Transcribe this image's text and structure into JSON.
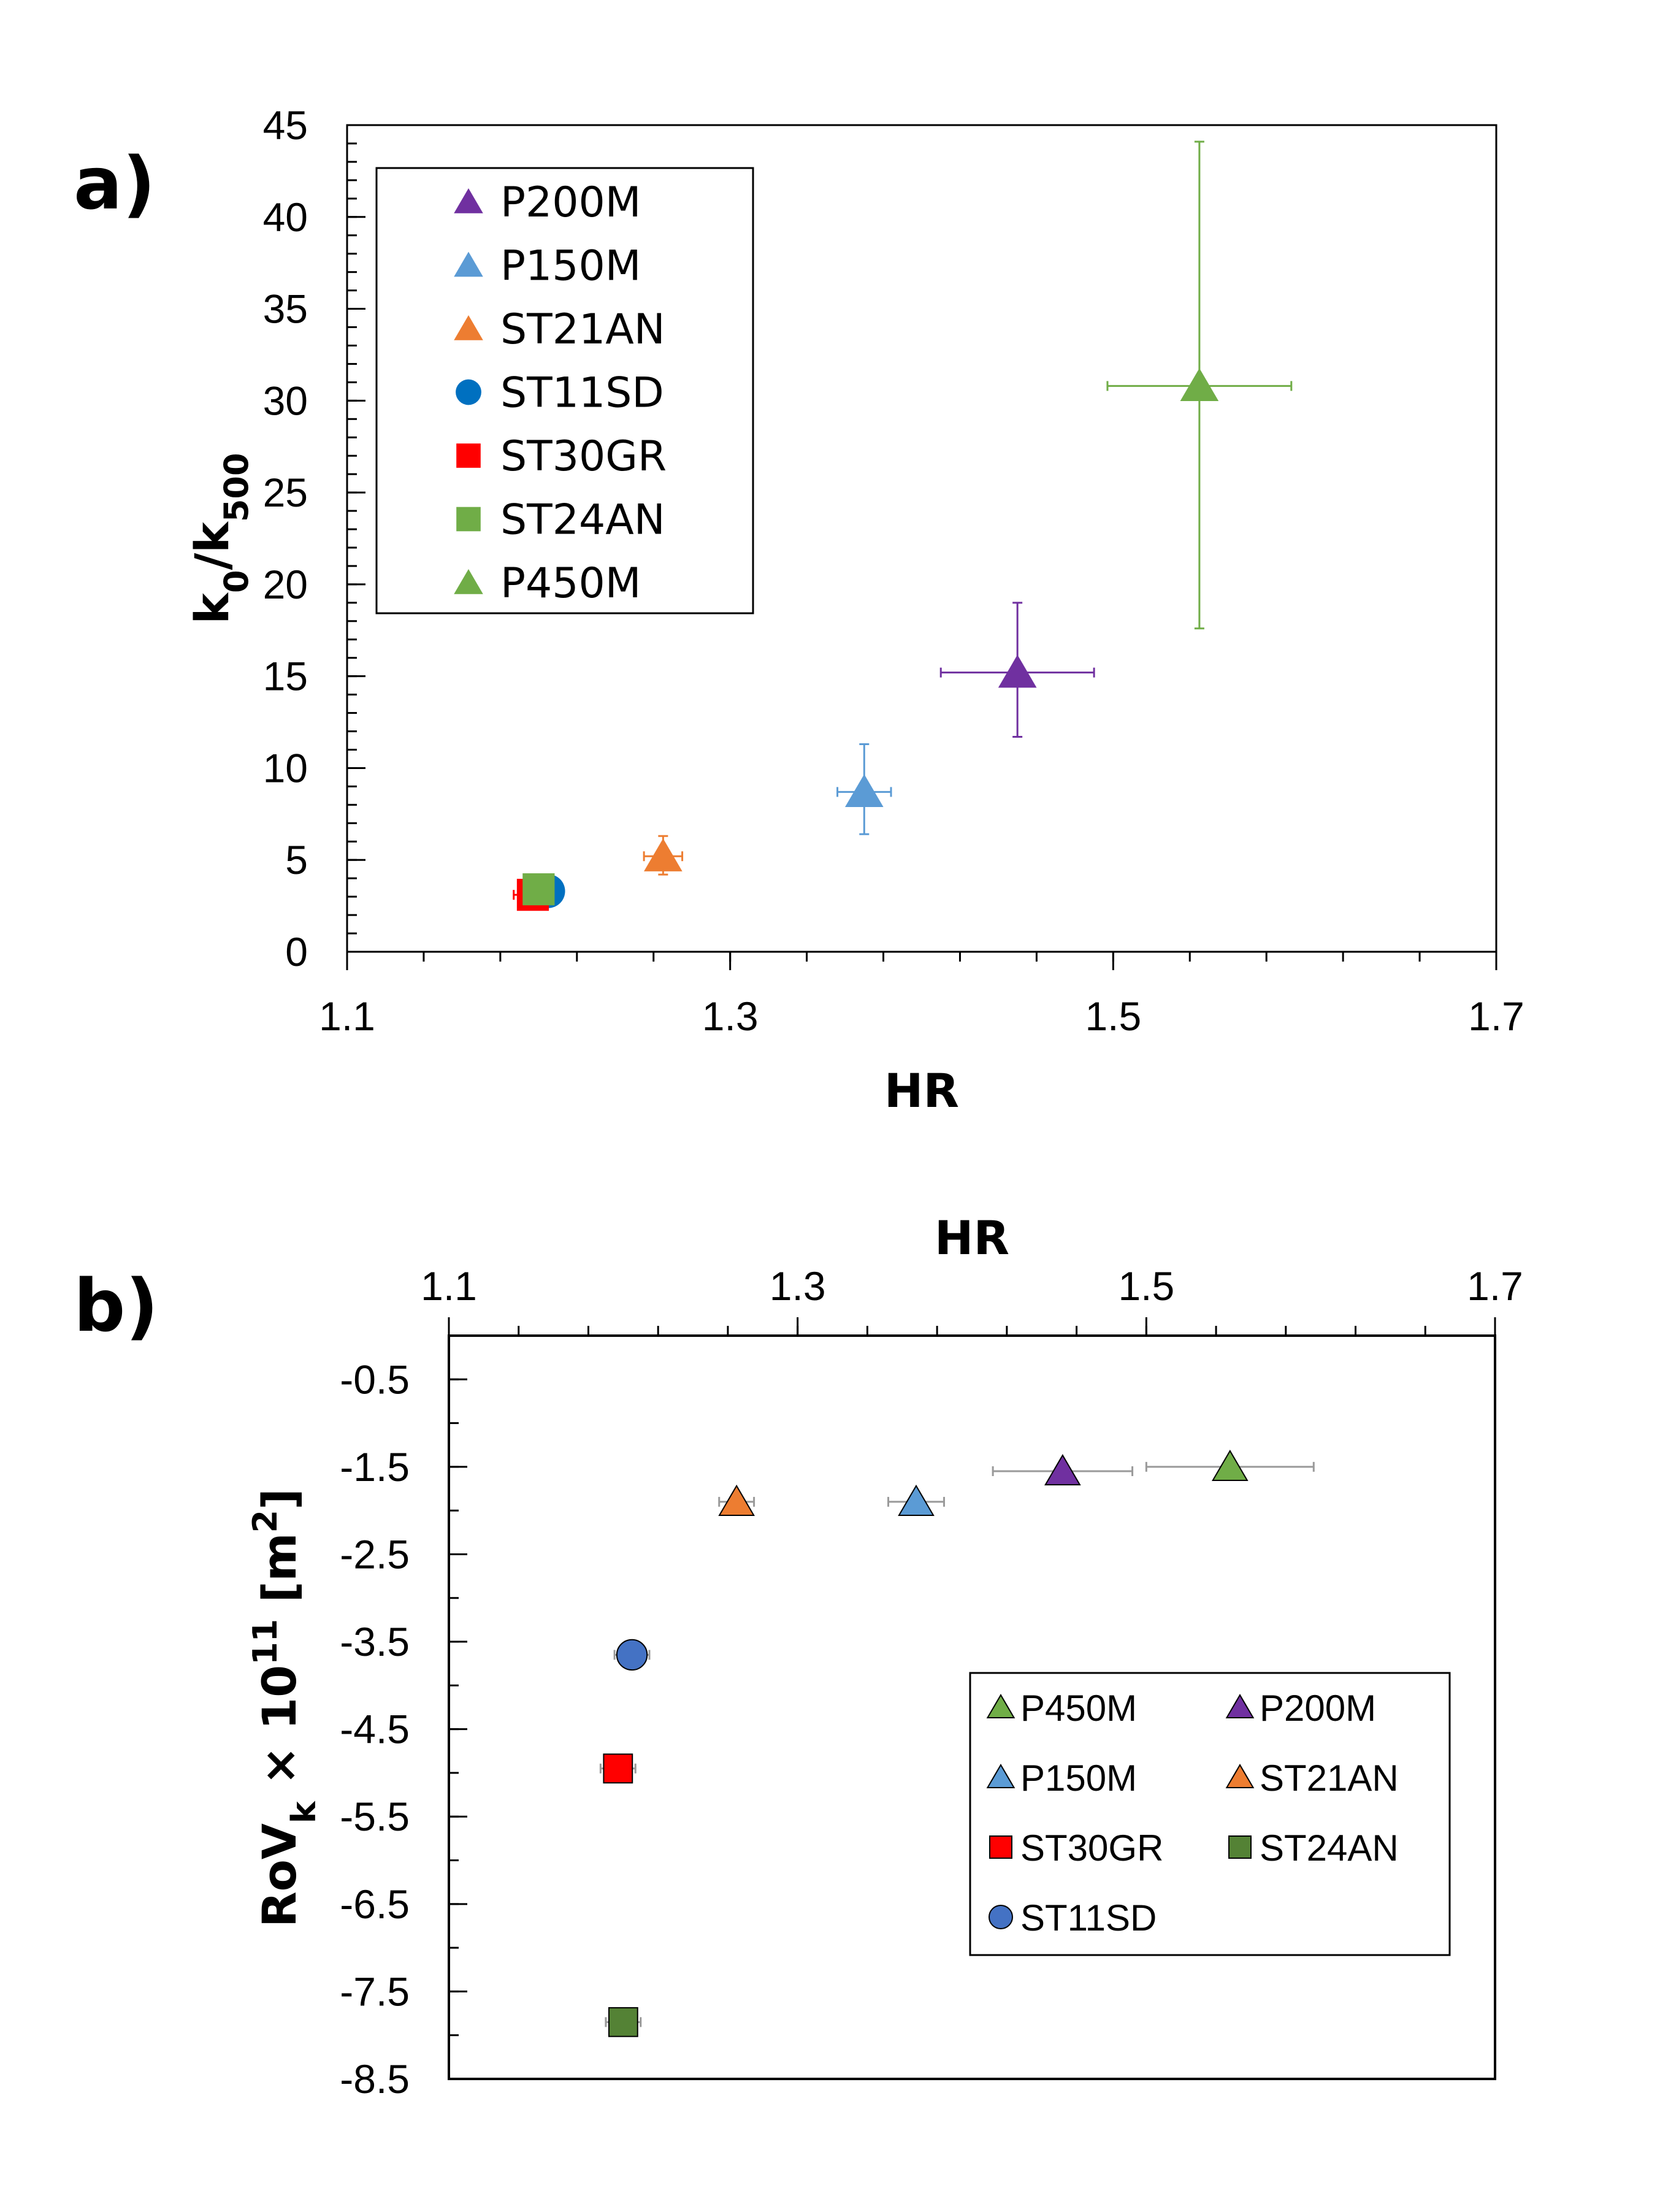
{
  "panels": {
    "a": {
      "label": "a)"
    },
    "b": {
      "label": "b)"
    }
  },
  "chart_data": [
    {
      "type": "scatter",
      "panel": "a)",
      "xlabel": "HR",
      "ylabel_parts": {
        "base": "k",
        "sub1": "0",
        "slash": "/k",
        "sub2": "500"
      },
      "xlim": [
        1.1,
        1.7
      ],
      "ylim": [
        0,
        45
      ],
      "x_ticks": [
        "1.1",
        "1.3",
        "1.5",
        "1.7"
      ],
      "y_ticks": [
        "0",
        "5",
        "10",
        "15",
        "20",
        "25",
        "30",
        "35",
        "40",
        "45"
      ],
      "x_tick_values": [
        1.1,
        1.3,
        1.5,
        1.7
      ],
      "y_tick_values": [
        0,
        5,
        10,
        15,
        20,
        25,
        30,
        35,
        40,
        45
      ],
      "x_minor_step": 0.04,
      "y_minor_step": 1,
      "grid": false,
      "legend_position": "top-left",
      "legend_order": [
        "P200M",
        "P150M",
        "ST21AN",
        "ST11SD",
        "ST30GR",
        "ST24AN",
        "P450M"
      ],
      "series": [
        {
          "name": "P200M",
          "marker": "triangle",
          "color": "#7030A0",
          "x": 1.45,
          "y": 15.2,
          "x_err": 0.04,
          "y_err_plus": 3.8,
          "y_err_minus": 3.5
        },
        {
          "name": "P150M",
          "marker": "triangle",
          "color": "#5B9BD5",
          "x": 1.37,
          "y": 8.7,
          "x_err": 0.014,
          "y_err_plus": 2.6,
          "y_err_minus": 2.3
        },
        {
          "name": "ST21AN",
          "marker": "triangle",
          "color": "#ED7D31",
          "x": 1.265,
          "y": 5.2,
          "x_err": 0.01,
          "y_err_plus": 1.1,
          "y_err_minus": 1.0
        },
        {
          "name": "ST11SD",
          "marker": "circle",
          "color": "#0070C0",
          "x": 1.205,
          "y": 3.3,
          "x_err": 0.008,
          "y_err_plus": 0.3,
          "y_err_minus": 0.3
        },
        {
          "name": "ST30GR",
          "marker": "square",
          "color": "#FF0000",
          "x": 1.197,
          "y": 3.1,
          "x_err": 0.01,
          "y_err_plus": 0.3,
          "y_err_minus": 0.3
        },
        {
          "name": "ST24AN",
          "marker": "square",
          "color": "#70AD47",
          "x": 1.2,
          "y": 3.4,
          "x_err": 0.006,
          "y_err_plus": 0.3,
          "y_err_minus": 0.3
        },
        {
          "name": "P450M",
          "marker": "triangle",
          "color": "#70AD47",
          "x": 1.545,
          "y": 30.8,
          "x_err": 0.048,
          "y_err_plus": 13.3,
          "y_err_minus": 13.2
        }
      ]
    },
    {
      "type": "scatter",
      "panel": "b)",
      "xlabel": "HR",
      "x_axis_position": "top",
      "ylabel_parts": {
        "base": "RoV",
        "sub": "k",
        "mid": " × 10",
        "sup": "11",
        "unit": " [m",
        "unit_sup": "2",
        "close": "]"
      },
      "xlim": [
        1.1,
        1.7
      ],
      "ylim": [
        -8.5,
        0
      ],
      "x_ticks": [
        "1.1",
        "1.3",
        "1.5",
        "1.7"
      ],
      "y_ticks": [
        "-0.5",
        "-1.5",
        "-2.5",
        "-3.5",
        "-4.5",
        "-5.5",
        "-6.5",
        "-7.5",
        "-8.5"
      ],
      "x_tick_values": [
        1.1,
        1.3,
        1.5,
        1.7
      ],
      "y_tick_values": [
        -0.5,
        -1.5,
        -2.5,
        -3.5,
        -4.5,
        -5.5,
        -6.5,
        -7.5,
        -8.5
      ],
      "x_minor_step": 0.04,
      "y_minor_step": 0.5,
      "grid": false,
      "legend_position": "bottom-right",
      "legend_order": [
        "P450M",
        "P200M",
        "P150M",
        "ST21AN",
        "ST30GR",
        "ST24AN",
        "ST11SD"
      ],
      "series": [
        {
          "name": "P450M",
          "marker": "triangle",
          "color": "#70AD47",
          "x": 1.548,
          "y": -1.5,
          "x_err": 0.048,
          "y_err": 0
        },
        {
          "name": "P200M",
          "marker": "triangle",
          "color": "#7030A0",
          "x": 1.452,
          "y": -1.55,
          "x_err": 0.04,
          "y_err": 0
        },
        {
          "name": "P150M",
          "marker": "triangle",
          "color": "#5B9BD5",
          "x": 1.368,
          "y": -1.9,
          "x_err": 0.016,
          "y_err": 0
        },
        {
          "name": "ST21AN",
          "marker": "triangle",
          "color": "#ED7D31",
          "x": 1.265,
          "y": -1.9,
          "x_err": 0.01,
          "y_err": 0
        },
        {
          "name": "ST30GR",
          "marker": "square",
          "color": "#FF0000",
          "x": 1.197,
          "y": -4.95,
          "x_err": 0.01,
          "y_err": 0
        },
        {
          "name": "ST24AN",
          "marker": "square",
          "color": "#548235",
          "x": 1.2,
          "y": -7.85,
          "x_err": 0.01,
          "y_err": 0
        },
        {
          "name": "ST11SD",
          "marker": "circle",
          "color": "#4472C4",
          "x": 1.205,
          "y": -3.65,
          "x_err": 0.01,
          "y_err": 0
        }
      ]
    }
  ]
}
